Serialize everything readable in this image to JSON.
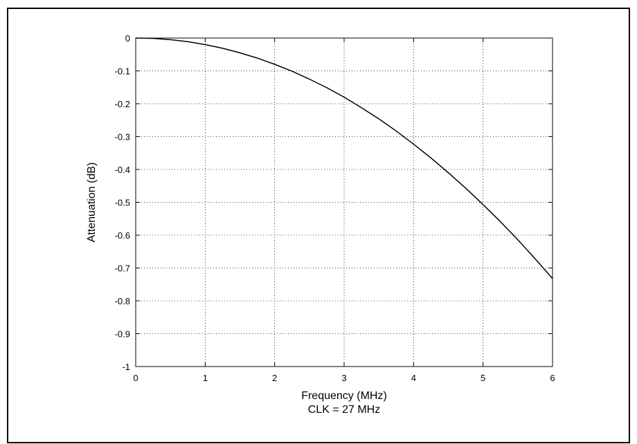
{
  "chart_data": {
    "type": "line",
    "title": "",
    "xlabel": "Frequency (MHz)",
    "xlabel_sub": "CLK = 27 MHz",
    "ylabel": "Attenuation (dB)",
    "xlim": [
      0,
      6
    ],
    "ylim": [
      -1,
      0
    ],
    "x_ticks": [
      "0",
      "1",
      "2",
      "3",
      "4",
      "5",
      "6"
    ],
    "y_ticks": [
      "0",
      "-0.1",
      "-0.2",
      "-0.3",
      "-0.4",
      "-0.5",
      "-0.6",
      "-0.7",
      "-0.8",
      "-0.9",
      "-1"
    ],
    "grid": true,
    "grid_style": "dotted",
    "line_color": "#000000",
    "series": [
      {
        "x": [
          0,
          0.25,
          0.5,
          0.75,
          1,
          1.25,
          1.5,
          1.75,
          2,
          2.25,
          2.5,
          2.75,
          3,
          3.25,
          3.5,
          3.75,
          4,
          4.25,
          4.5,
          4.75,
          5,
          5.25,
          5.5,
          5.75,
          6
        ],
        "y": [
          0,
          -0.001,
          -0.005,
          -0.011,
          -0.02,
          -0.031,
          -0.045,
          -0.061,
          -0.08,
          -0.101,
          -0.125,
          -0.151,
          -0.18,
          -0.212,
          -0.246,
          -0.283,
          -0.323,
          -0.365,
          -0.41,
          -0.457,
          -0.507,
          -0.559,
          -0.614,
          -0.672,
          -0.732
        ]
      }
    ]
  }
}
